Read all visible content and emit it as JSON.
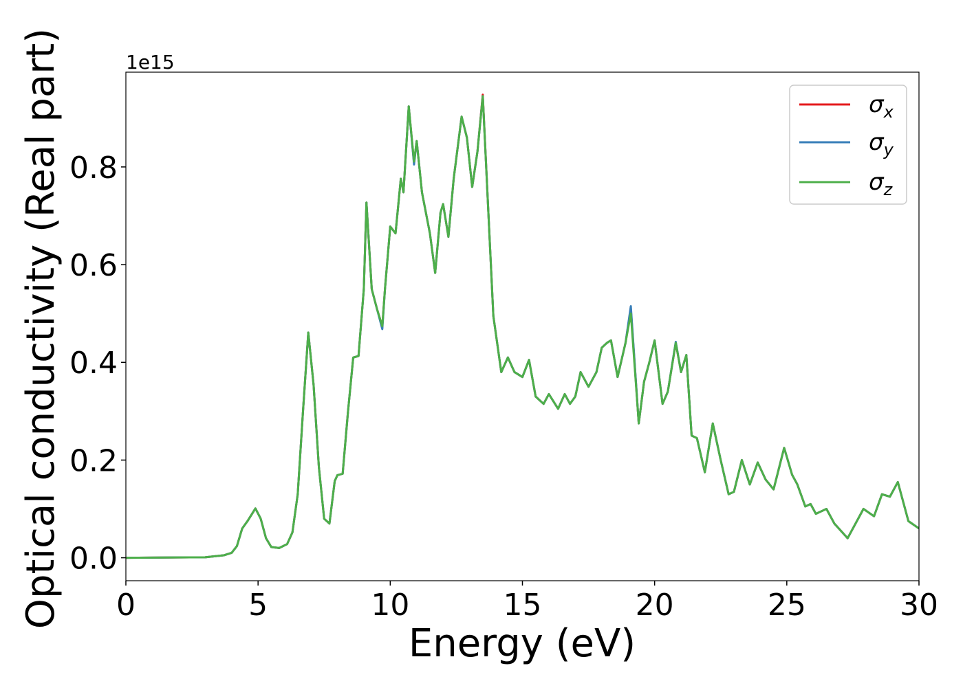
{
  "chart_data": {
    "type": "line",
    "xlabel": "Energy (eV)",
    "ylabel": "Optical conductivity (Real part)",
    "y_offset_label": "1e15",
    "xlim": [
      0,
      30
    ],
    "xticks": [
      0,
      5,
      10,
      15,
      20,
      25,
      30
    ],
    "ylim": [
      -0.047,
      0.994
    ],
    "yticks": [
      {
        "value": 0,
        "label": "0.0"
      },
      0.2,
      0.4,
      0.6,
      0.8
    ],
    "legend": "upper right",
    "x": [
      0,
      3,
      3.7,
      4,
      4.2,
      4.4,
      4.6,
      4.9,
      5.1,
      5.3,
      5.5,
      5.8,
      6.1,
      6.3,
      6.5,
      6.7,
      6.9,
      7.1,
      7.3,
      7.5,
      7.7,
      7.9,
      8,
      8.2,
      8.4,
      8.6,
      8.8,
      9,
      9.1,
      9.3,
      9.5,
      9.7,
      9.8,
      10,
      10.2,
      10.4,
      10.5,
      10.7,
      10.9,
      11,
      11.2,
      11.5,
      11.7,
      11.9,
      12,
      12.2,
      12.4,
      12.7,
      12.9,
      13.1,
      13.3,
      13.5,
      13.7,
      13.9,
      14.2,
      14.45,
      14.7,
      15,
      15.25,
      15.5,
      15.8,
      16,
      16.35,
      16.6,
      16.8,
      17,
      17.2,
      17.5,
      17.8,
      18,
      18.2,
      18.35,
      18.6,
      18.9,
      19.1,
      19.4,
      19.6,
      19.8,
      20,
      20.3,
      20.5,
      20.8,
      21,
      21.2,
      21.4,
      21.6,
      21.9,
      22.2,
      22.5,
      22.8,
      23,
      23.3,
      23.6,
      23.9,
      24.2,
      24.5,
      24.9,
      25.2,
      25.4,
      25.7,
      25.9,
      26.1,
      26.3,
      26.5,
      26.8,
      27.3,
      27.9,
      28.3,
      28.6,
      28.9,
      29.2,
      29.6,
      30
    ],
    "series": [
      {
        "name": "σx",
        "color": "#e41a1c",
        "values": [
          0,
          0.001,
          0.005,
          0.01,
          0.024,
          0.06,
          0.075,
          0.101,
          0.08,
          0.04,
          0.022,
          0.02,
          0.028,
          0.052,
          0.13,
          0.3,
          0.461,
          0.354,
          0.186,
          0.08,
          0.07,
          0.157,
          0.169,
          0.172,
          0.298,
          0.41,
          0.413,
          0.55,
          0.727,
          0.55,
          0.509,
          0.474,
          0.55,
          0.678,
          0.664,
          0.776,
          0.748,
          0.924,
          0.808,
          0.853,
          0.748,
          0.664,
          0.583,
          0.706,
          0.724,
          0.657,
          0.776,
          0.903,
          0.86,
          0.759,
          0.832,
          0.948,
          0.72,
          0.495,
          0.38,
          0.41,
          0.38,
          0.37,
          0.405,
          0.33,
          0.315,
          0.335,
          0.305,
          0.335,
          0.315,
          0.33,
          0.38,
          0.35,
          0.38,
          0.43,
          0.44,
          0.445,
          0.37,
          0.44,
          0.51,
          0.275,
          0.36,
          0.4,
          0.445,
          0.315,
          0.34,
          0.44,
          0.38,
          0.415,
          0.25,
          0.245,
          0.175,
          0.275,
          0.2,
          0.13,
          0.135,
          0.2,
          0.15,
          0.195,
          0.16,
          0.14,
          0.225,
          0.17,
          0.15,
          0.105,
          0.11,
          0.09,
          0.095,
          0.1,
          0.07,
          0.04,
          0.1,
          0.085,
          0.13,
          0.125,
          0.155,
          0.075,
          0.06
        ]
      },
      {
        "name": "σy",
        "color": "#377eb8",
        "values": [
          0,
          0.001,
          0.005,
          0.01,
          0.024,
          0.06,
          0.075,
          0.101,
          0.08,
          0.04,
          0.022,
          0.02,
          0.028,
          0.052,
          0.13,
          0.3,
          0.461,
          0.354,
          0.186,
          0.08,
          0.07,
          0.157,
          0.169,
          0.172,
          0.298,
          0.41,
          0.413,
          0.55,
          0.727,
          0.55,
          0.509,
          0.468,
          0.55,
          0.678,
          0.664,
          0.776,
          0.748,
          0.924,
          0.805,
          0.853,
          0.748,
          0.664,
          0.583,
          0.706,
          0.724,
          0.657,
          0.776,
          0.903,
          0.86,
          0.759,
          0.832,
          0.945,
          0.72,
          0.495,
          0.38,
          0.41,
          0.38,
          0.37,
          0.405,
          0.33,
          0.315,
          0.335,
          0.305,
          0.335,
          0.315,
          0.33,
          0.38,
          0.35,
          0.38,
          0.43,
          0.44,
          0.445,
          0.37,
          0.44,
          0.515,
          0.275,
          0.36,
          0.4,
          0.445,
          0.315,
          0.34,
          0.442,
          0.38,
          0.415,
          0.25,
          0.245,
          0.175,
          0.275,
          0.2,
          0.13,
          0.135,
          0.2,
          0.15,
          0.195,
          0.16,
          0.14,
          0.225,
          0.17,
          0.15,
          0.105,
          0.11,
          0.09,
          0.095,
          0.1,
          0.07,
          0.04,
          0.1,
          0.085,
          0.13,
          0.125,
          0.155,
          0.075,
          0.06
        ]
      },
      {
        "name": "σz",
        "color": "#4daf4a",
        "values": [
          0,
          0.001,
          0.005,
          0.01,
          0.024,
          0.06,
          0.075,
          0.101,
          0.08,
          0.04,
          0.022,
          0.02,
          0.028,
          0.052,
          0.13,
          0.3,
          0.461,
          0.354,
          0.186,
          0.08,
          0.07,
          0.157,
          0.169,
          0.172,
          0.298,
          0.41,
          0.413,
          0.55,
          0.727,
          0.55,
          0.509,
          0.474,
          0.55,
          0.678,
          0.664,
          0.776,
          0.748,
          0.924,
          0.811,
          0.853,
          0.748,
          0.664,
          0.583,
          0.706,
          0.724,
          0.657,
          0.776,
          0.903,
          0.86,
          0.759,
          0.832,
          0.945,
          0.72,
          0.495,
          0.38,
          0.41,
          0.38,
          0.37,
          0.405,
          0.33,
          0.315,
          0.335,
          0.305,
          0.335,
          0.315,
          0.33,
          0.38,
          0.35,
          0.38,
          0.43,
          0.44,
          0.445,
          0.37,
          0.44,
          0.5,
          0.275,
          0.36,
          0.4,
          0.445,
          0.315,
          0.34,
          0.44,
          0.38,
          0.415,
          0.25,
          0.245,
          0.175,
          0.275,
          0.2,
          0.13,
          0.135,
          0.2,
          0.15,
          0.195,
          0.16,
          0.14,
          0.225,
          0.17,
          0.15,
          0.105,
          0.11,
          0.09,
          0.095,
          0.1,
          0.07,
          0.04,
          0.1,
          0.085,
          0.13,
          0.125,
          0.155,
          0.075,
          0.06
        ]
      }
    ]
  }
}
